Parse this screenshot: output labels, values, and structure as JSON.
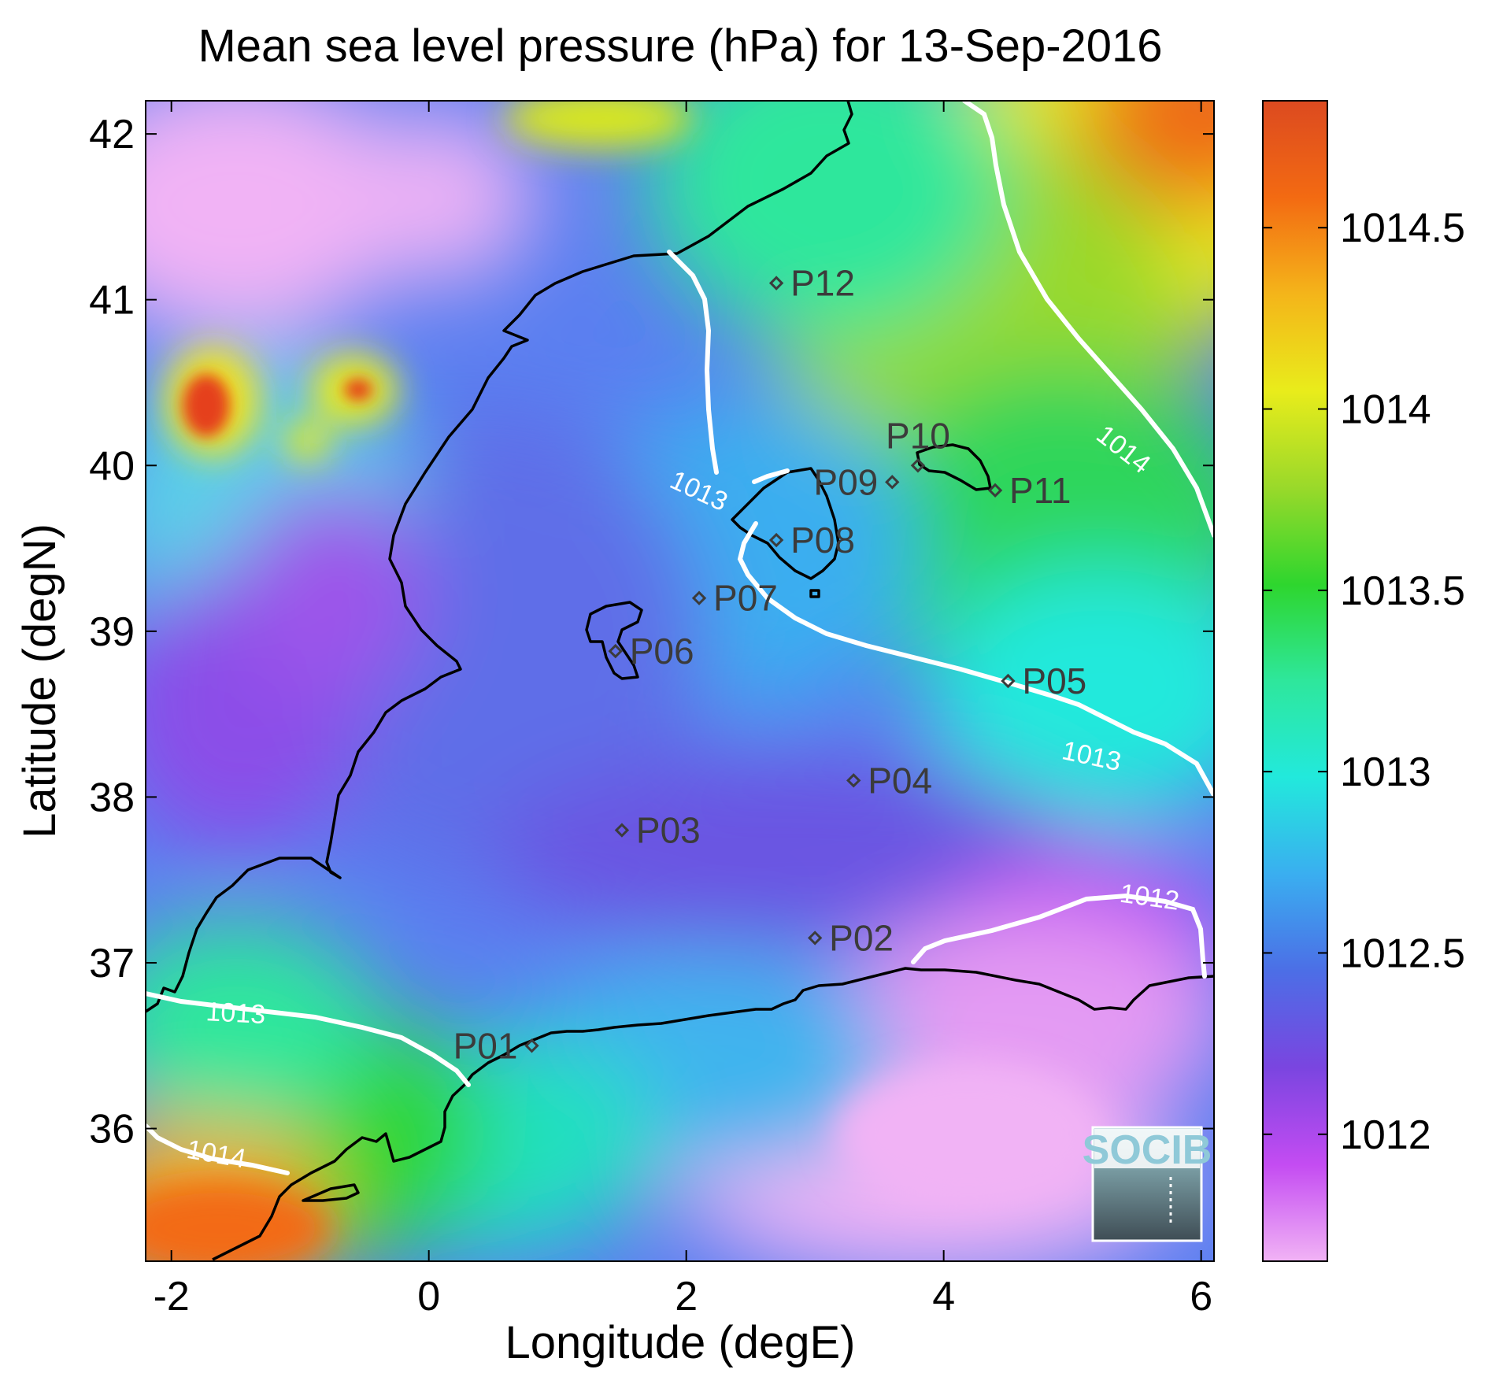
{
  "title": "Mean sea level pressure (hPa) for 13-Sep-2016",
  "xlabel": "Longitude (degE)",
  "ylabel": "Latitude (degN)",
  "logo": "SOCIB",
  "map": {
    "lon_range": [
      -2.2,
      6.1
    ],
    "lat_range": [
      35.2,
      42.2
    ],
    "x_ticks": [
      {
        "value": -2,
        "label": "-2"
      },
      {
        "value": 0,
        "label": "0"
      },
      {
        "value": 2,
        "label": "2"
      },
      {
        "value": 4,
        "label": "4"
      },
      {
        "value": 6,
        "label": "6"
      }
    ],
    "y_ticks": [
      {
        "value": 36,
        "label": "36"
      },
      {
        "value": 37,
        "label": "37"
      },
      {
        "value": 38,
        "label": "38"
      },
      {
        "value": 39,
        "label": "39"
      },
      {
        "value": 40,
        "label": "40"
      },
      {
        "value": 41,
        "label": "41"
      },
      {
        "value": 42,
        "label": "42"
      }
    ],
    "points": [
      {
        "name": "P01",
        "lon": 0.8,
        "lat": 36.5
      },
      {
        "name": "P02",
        "lon": 3.0,
        "lat": 37.15
      },
      {
        "name": "P03",
        "lon": 1.5,
        "lat": 37.8
      },
      {
        "name": "P04",
        "lon": 3.3,
        "lat": 38.1
      },
      {
        "name": "P05",
        "lon": 4.5,
        "lat": 38.7
      },
      {
        "name": "P06",
        "lon": 1.45,
        "lat": 38.88
      },
      {
        "name": "P07",
        "lon": 2.1,
        "lat": 39.2
      },
      {
        "name": "P08",
        "lon": 2.7,
        "lat": 39.55
      },
      {
        "name": "P09",
        "lon": 3.6,
        "lat": 39.9
      },
      {
        "name": "P10",
        "lon": 3.8,
        "lat": 40.0
      },
      {
        "name": "P11",
        "lon": 4.4,
        "lat": 39.85
      },
      {
        "name": "P12",
        "lon": 2.7,
        "lat": 41.1
      }
    ],
    "contour_labels": [
      {
        "text": "1013",
        "lon": -1.5,
        "lat": 36.7,
        "angle": 3
      },
      {
        "text": "1014",
        "lon": -1.65,
        "lat": 35.85,
        "angle": 10
      },
      {
        "text": "1013",
        "lon": 2.1,
        "lat": 39.85,
        "angle": 25
      },
      {
        "text": "1014",
        "lon": 5.4,
        "lat": 40.1,
        "angle": 38
      },
      {
        "text": "1013",
        "lon": 5.15,
        "lat": 38.25,
        "angle": 12
      },
      {
        "text": "1012",
        "lon": 5.6,
        "lat": 37.4,
        "angle": 8
      }
    ]
  },
  "colorbar": {
    "range": [
      1011.65,
      1014.85
    ],
    "ticks": [
      {
        "value": 1012,
        "label": "1012"
      },
      {
        "value": 1012.5,
        "label": "1012.5"
      },
      {
        "value": 1013,
        "label": "1013"
      },
      {
        "value": 1013.5,
        "label": "1013.5"
      },
      {
        "value": 1014,
        "label": "1014"
      },
      {
        "value": 1014.5,
        "label": "1014.5"
      }
    ],
    "colors": [
      "#f1b3f5",
      "#c44cf2",
      "#7a45e0",
      "#4c6ee6",
      "#3aaef0",
      "#22e9dc",
      "#2ee79c",
      "#2ed62e",
      "#9ad92a",
      "#e9ec1b",
      "#f4b51a",
      "#f36a12",
      "#dc4a20"
    ]
  },
  "colors": {
    "contour": "#ffffff",
    "coast": "#000000",
    "marker": "#3b3b3b"
  }
}
